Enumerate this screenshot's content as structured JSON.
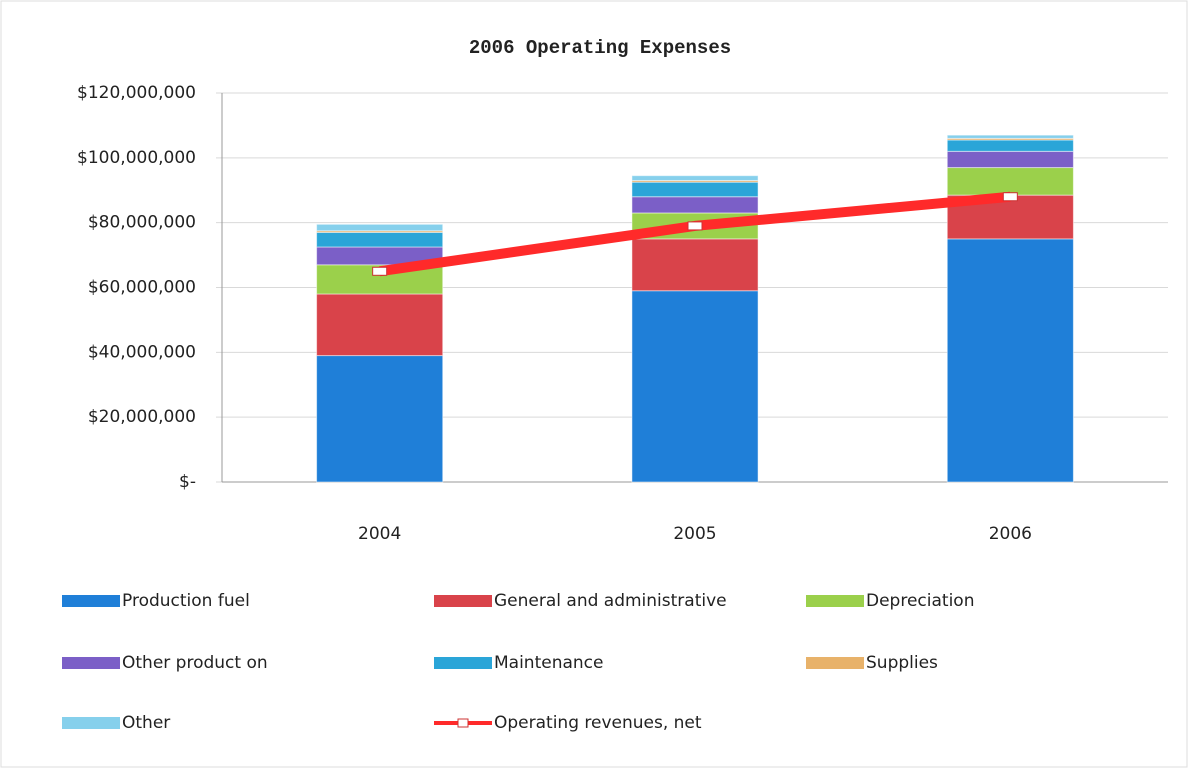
{
  "chart_data": {
    "type": "bar",
    "stacked": true,
    "title": "2006 Operating Expenses",
    "categories": [
      "2004",
      "2005",
      "2006"
    ],
    "series": [
      {
        "name": "Production fuel",
        "color": "#1f7fd8",
        "values": [
          39000000,
          59000000,
          75000000
        ]
      },
      {
        "name": "General and administrative",
        "color": "#d9434a",
        "values": [
          19000000,
          16000000,
          13500000
        ]
      },
      {
        "name": "Depreciation",
        "color": "#9bd04b",
        "values": [
          9000000,
          8000000,
          8500000
        ]
      },
      {
        "name": "Other product on",
        "color": "#7b5fc7",
        "values": [
          5500000,
          5000000,
          5000000
        ]
      },
      {
        "name": "Maintenance",
        "color": "#2aa5d8",
        "values": [
          4500000,
          4500000,
          3500000
        ]
      },
      {
        "name": "Supplies",
        "color": "#e8b26a",
        "values": [
          500000,
          500000,
          500000
        ]
      },
      {
        "name": "Other",
        "color": "#86d0ec",
        "values": [
          2000000,
          1500000,
          1000000
        ]
      },
      {
        "name": "Operating revenues, net",
        "color": "#ff2a2a",
        "type": "line",
        "values": [
          65000000,
          79000000,
          88000000
        ]
      }
    ],
    "ylim": [
      0,
      120000000
    ],
    "yticks": [
      {
        "value": 0,
        "label": "$-"
      },
      {
        "value": 20000000,
        "label": "$20,000,000"
      },
      {
        "value": 40000000,
        "label": "$40,000,000"
      },
      {
        "value": 60000000,
        "label": "$60,000,000"
      },
      {
        "value": 80000000,
        "label": "$80,000,000"
      },
      {
        "value": 100000000,
        "label": "$100,000,000"
      },
      {
        "value": 120000000,
        "label": "$120,000,000"
      }
    ],
    "grid": true,
    "legend": "bottom"
  }
}
